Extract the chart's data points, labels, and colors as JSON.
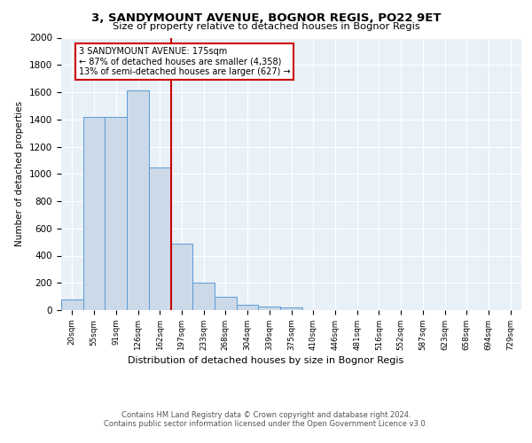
{
  "title": "3, SANDYMOUNT AVENUE, BOGNOR REGIS, PO22 9ET",
  "subtitle": "Size of property relative to detached houses in Bognor Regis",
  "xlabel": "Distribution of detached houses by size in Bognor Regis",
  "ylabel": "Number of detached properties",
  "bin_labels": [
    "20sqm",
    "55sqm",
    "91sqm",
    "126sqm",
    "162sqm",
    "197sqm",
    "233sqm",
    "268sqm",
    "304sqm",
    "339sqm",
    "375sqm",
    "410sqm",
    "446sqm",
    "481sqm",
    "516sqm",
    "552sqm",
    "587sqm",
    "623sqm",
    "658sqm",
    "694sqm",
    "729sqm"
  ],
  "bar_heights": [
    80,
    1420,
    1420,
    1610,
    1050,
    490,
    200,
    100,
    40,
    25,
    20,
    0,
    0,
    0,
    0,
    0,
    0,
    0,
    0,
    0,
    0
  ],
  "bar_color": "#ccd9e8",
  "bar_edge_color": "#5b9bd5",
  "vline_x": 4.5,
  "vline_color": "#cc0000",
  "annotation_text": "3 SANDYMOUNT AVENUE: 175sqm\n← 87% of detached houses are smaller (4,358)\n13% of semi-detached houses are larger (627) →",
  "annotation_box_color": "#ffffff",
  "annotation_box_edge": "#cc0000",
  "ylim": [
    0,
    2000
  ],
  "yticks": [
    0,
    200,
    400,
    600,
    800,
    1000,
    1200,
    1400,
    1600,
    1800,
    2000
  ],
  "footer": "Contains HM Land Registry data © Crown copyright and database right 2024.\nContains public sector information licensed under the Open Government Licence v3.0.",
  "plot_bg_color": "#e8f0f8"
}
